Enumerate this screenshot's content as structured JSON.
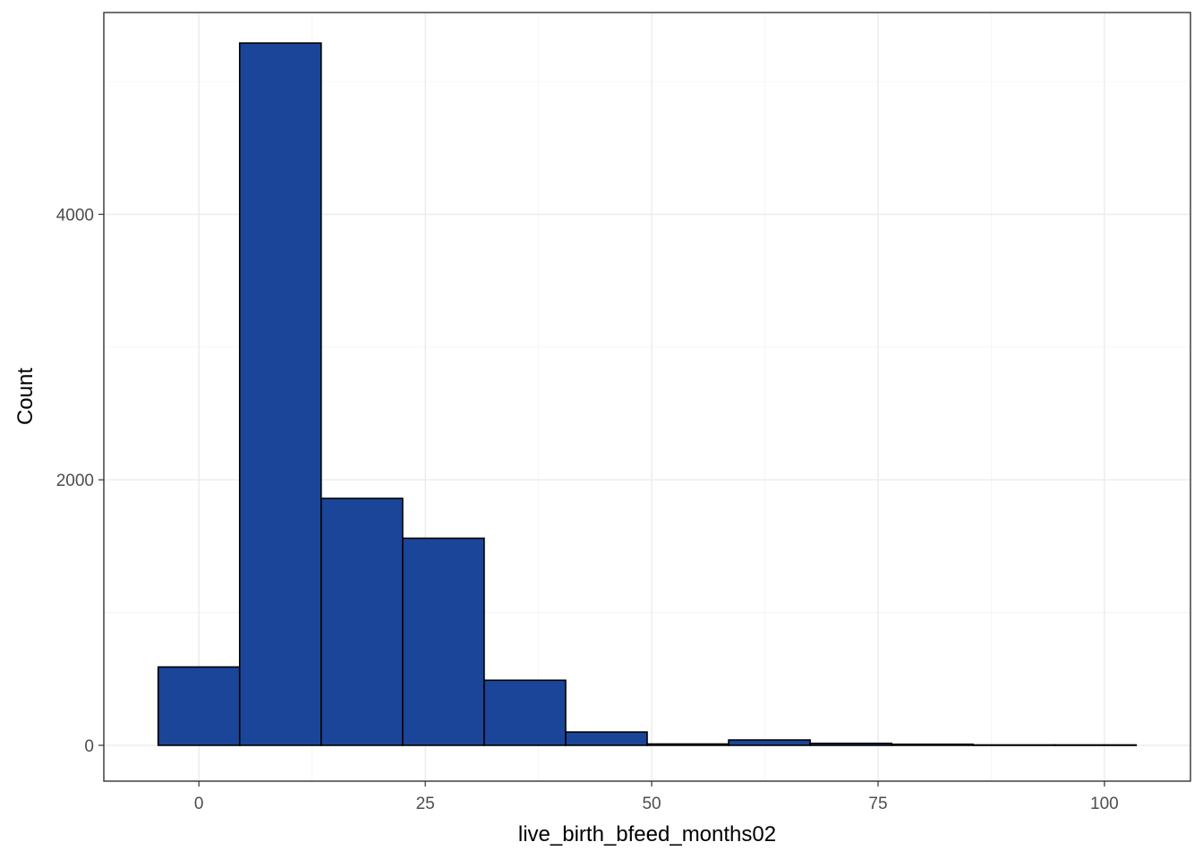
{
  "chart_data": {
    "type": "bar",
    "subtype": "histogram",
    "xlabel": "live_birth_bfeed_months02",
    "ylabel": "Count",
    "xlim": [
      -10.5,
      109.5
    ],
    "ylim": [
      -270,
      5520
    ],
    "x_ticks": [
      0,
      25,
      50,
      75,
      100
    ],
    "x_tick_labels": [
      "0",
      "25",
      "50",
      "75",
      "100"
    ],
    "y_ticks": [
      0,
      2000,
      4000
    ],
    "y_tick_labels": [
      "0",
      "2000",
      "4000"
    ],
    "grid": true,
    "legend": "none",
    "fill_color": "#1a4599",
    "outline_color": "#000000",
    "bins": [
      {
        "x_min": -4.5,
        "x_max": 4.5,
        "count": 590
      },
      {
        "x_min": 4.5,
        "x_max": 13.5,
        "count": 5290
      },
      {
        "x_min": 13.5,
        "x_max": 22.5,
        "count": 1860
      },
      {
        "x_min": 22.5,
        "x_max": 31.5,
        "count": 1560
      },
      {
        "x_min": 31.5,
        "x_max": 40.5,
        "count": 490
      },
      {
        "x_min": 40.5,
        "x_max": 49.5,
        "count": 100
      },
      {
        "x_min": 49.5,
        "x_max": 58.5,
        "count": 10
      },
      {
        "x_min": 58.5,
        "x_max": 67.5,
        "count": 40
      },
      {
        "x_min": 67.5,
        "x_max": 76.5,
        "count": 15
      },
      {
        "x_min": 76.5,
        "x_max": 85.5,
        "count": 8
      },
      {
        "x_min": 85.5,
        "x_max": 94.5,
        "count": 3
      },
      {
        "x_min": 94.5,
        "x_max": 103.5,
        "count": 3
      }
    ]
  }
}
